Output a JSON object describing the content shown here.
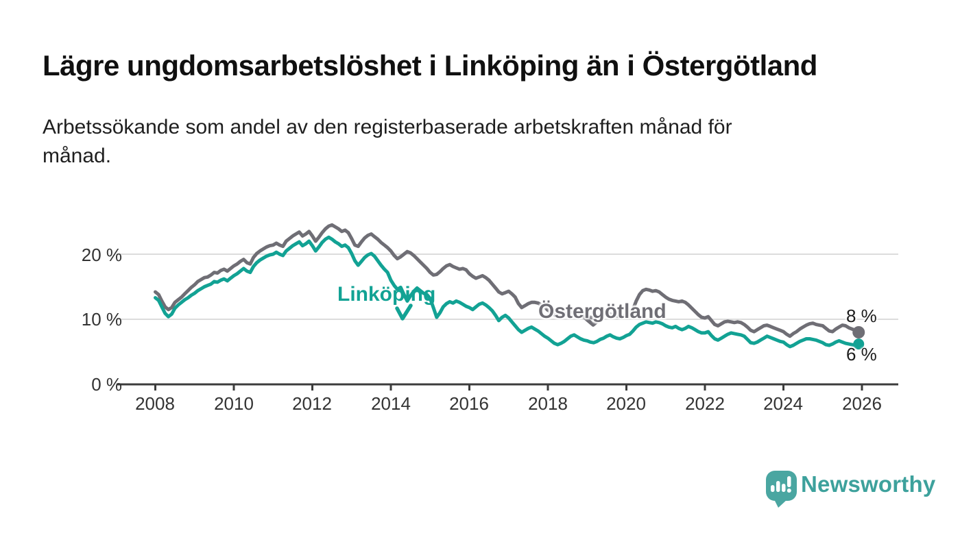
{
  "header": {
    "title": "Lägre ungdomsarbetslöshet i Linköping än i Östergötland",
    "subtitle_line1": "Arbetssökande som andel av den registerbaserade arbetskraften månad för",
    "subtitle_line2": "månad."
  },
  "footer": {
    "brand": "Newsworthy",
    "brand_color": "#3da19c"
  },
  "colors": {
    "linkoping": "#12a294",
    "ostergotland": "#6f6e75",
    "gridline": "#dcdcdc",
    "axis": "#3c3c3c",
    "tick_text": "#333333"
  },
  "chart_data": {
    "type": "line",
    "unit": "%",
    "x_start_year": 2008,
    "points_per_year": 12,
    "x_ticks": [
      "2008",
      "2010",
      "2012",
      "2014",
      "2016",
      "2018",
      "2020",
      "2022",
      "2024",
      "2026"
    ],
    "y_ticks": [
      {
        "value": 0,
        "label": "0 %"
      },
      {
        "value": 10,
        "label": "10 %"
      },
      {
        "value": 20,
        "label": "20 %"
      }
    ],
    "ylim": [
      0,
      26
    ],
    "xlim": [
      2008,
      2026.9
    ],
    "grid": "horizontal-only",
    "legend_position": "inline-labels-on-lines",
    "series": [
      {
        "name": "Östergötland",
        "color": "#6f6e75",
        "end_label": "8 %",
        "end_value": 8,
        "values": [
          14.2,
          13.8,
          12.8,
          11.9,
          11.5,
          11.8,
          12.6,
          13.0,
          13.4,
          13.9,
          14.4,
          14.9,
          15.3,
          15.8,
          16.1,
          16.4,
          16.5,
          16.8,
          17.2,
          17.1,
          17.5,
          17.7,
          17.4,
          17.8,
          18.2,
          18.5,
          18.9,
          19.2,
          18.7,
          18.5,
          19.5,
          20.1,
          20.5,
          20.8,
          21.1,
          21.3,
          21.4,
          21.7,
          21.4,
          21.2,
          22.0,
          22.4,
          22.8,
          23.1,
          23.4,
          22.8,
          23.1,
          23.5,
          22.8,
          22.0,
          22.6,
          23.3,
          23.9,
          24.3,
          24.5,
          24.2,
          23.9,
          23.5,
          23.7,
          23.3,
          22.4,
          21.4,
          21.2,
          21.9,
          22.5,
          22.9,
          23.1,
          22.7,
          22.3,
          21.8,
          21.4,
          21.0,
          20.5,
          19.8,
          19.3,
          19.6,
          20.0,
          20.4,
          20.2,
          19.8,
          19.3,
          18.8,
          18.3,
          17.8,
          17.2,
          16.8,
          16.9,
          17.3,
          17.8,
          18.2,
          18.4,
          18.1,
          17.9,
          17.7,
          17.8,
          17.6,
          17.0,
          16.6,
          16.3,
          16.5,
          16.7,
          16.4,
          16.0,
          15.4,
          14.8,
          14.2,
          13.9,
          14.1,
          14.3,
          13.9,
          13.4,
          12.4,
          11.8,
          12.1,
          12.4,
          12.6,
          12.6,
          12.5,
          12.2,
          11.9,
          11.4,
          11.1,
          10.7,
          10.4,
          10.5,
          10.7,
          11.0,
          11.2,
          11.0,
          10.8,
          10.6,
          10.5,
          10.4,
          10.3,
          10.2,
          10.3,
          10.5,
          10.7,
          10.9,
          10.8,
          10.6,
          10.5,
          10.4,
          10.5,
          10.7,
          10.8,
          11.5,
          12.8,
          13.8,
          14.4,
          14.6,
          14.5,
          14.3,
          14.4,
          14.2,
          13.8,
          13.4,
          13.1,
          12.9,
          12.8,
          12.7,
          12.8,
          12.6,
          12.2,
          11.7,
          11.2,
          10.7,
          10.3,
          10.2,
          10.4,
          9.8,
          9.2,
          9.0,
          9.3,
          9.6,
          9.7,
          9.6,
          9.5,
          9.6,
          9.5,
          9.2,
          8.8,
          8.3,
          8.1,
          8.4,
          8.7,
          9.0,
          9.1,
          8.9,
          8.7,
          8.5,
          8.3,
          8.1,
          7.7,
          7.4,
          7.8,
          8.1,
          8.5,
          8.8,
          9.1,
          9.3,
          9.4,
          9.2,
          9.1,
          9.0,
          8.6,
          8.2,
          8.1,
          8.5,
          8.8,
          9.1,
          9.0,
          8.7,
          8.5,
          8.3,
          8.0
        ]
      },
      {
        "name": "Linköping",
        "color": "#12a294",
        "end_label": "6 %",
        "end_value": 6,
        "values": [
          13.3,
          12.9,
          11.9,
          10.9,
          10.4,
          10.8,
          11.7,
          12.2,
          12.6,
          13.0,
          13.3,
          13.7,
          14.0,
          14.4,
          14.7,
          15.0,
          15.2,
          15.4,
          15.8,
          15.7,
          16.0,
          16.2,
          15.9,
          16.3,
          16.7,
          17.0,
          17.4,
          17.8,
          17.4,
          17.2,
          18.1,
          18.7,
          19.1,
          19.4,
          19.7,
          19.9,
          20.0,
          20.3,
          20.0,
          19.8,
          20.5,
          20.9,
          21.3,
          21.6,
          21.9,
          21.3,
          21.6,
          22.0,
          21.3,
          20.5,
          21.1,
          21.8,
          22.3,
          22.6,
          22.3,
          21.9,
          21.6,
          21.2,
          21.4,
          21.0,
          20.1,
          19.0,
          18.3,
          18.9,
          19.5,
          19.9,
          20.1,
          19.7,
          19.0,
          18.3,
          17.7,
          17.2,
          16.0,
          15.2,
          14.6,
          14.9,
          13.8,
          12.8,
          13.6,
          14.3,
          14.8,
          14.4,
          14.0,
          13.8,
          13.2,
          11.8,
          10.3,
          11.0,
          11.9,
          12.4,
          12.7,
          12.5,
          12.8,
          12.6,
          12.3,
          12.0,
          11.8,
          11.5,
          11.9,
          12.3,
          12.5,
          12.2,
          11.8,
          11.3,
          10.6,
          9.8,
          10.3,
          10.6,
          10.2,
          9.6,
          9.0,
          8.4,
          8.0,
          8.3,
          8.6,
          8.8,
          8.5,
          8.2,
          7.8,
          7.4,
          7.1,
          6.7,
          6.3,
          6.1,
          6.3,
          6.6,
          7.0,
          7.4,
          7.6,
          7.3,
          7.0,
          6.8,
          6.7,
          6.5,
          6.4,
          6.6,
          6.9,
          7.1,
          7.4,
          7.6,
          7.3,
          7.1,
          7.0,
          7.2,
          7.5,
          7.7,
          8.2,
          8.8,
          9.2,
          9.4,
          9.6,
          9.5,
          9.4,
          9.6,
          9.5,
          9.3,
          9.0,
          8.8,
          8.7,
          8.9,
          8.6,
          8.4,
          8.6,
          8.9,
          8.7,
          8.4,
          8.1,
          7.9,
          7.9,
          8.1,
          7.5,
          7.0,
          6.8,
          7.1,
          7.4,
          7.7,
          7.9,
          7.8,
          7.7,
          7.6,
          7.4,
          6.9,
          6.4,
          6.3,
          6.5,
          6.8,
          7.1,
          7.4,
          7.2,
          7.0,
          6.8,
          6.6,
          6.5,
          6.1,
          5.8,
          6.0,
          6.3,
          6.6,
          6.8,
          7.0,
          7.0,
          6.9,
          6.8,
          6.6,
          6.4,
          6.1,
          6.0,
          6.2,
          6.5,
          6.7,
          6.5,
          6.3,
          6.2,
          6.1,
          6.0,
          6.2
        ]
      }
    ]
  }
}
